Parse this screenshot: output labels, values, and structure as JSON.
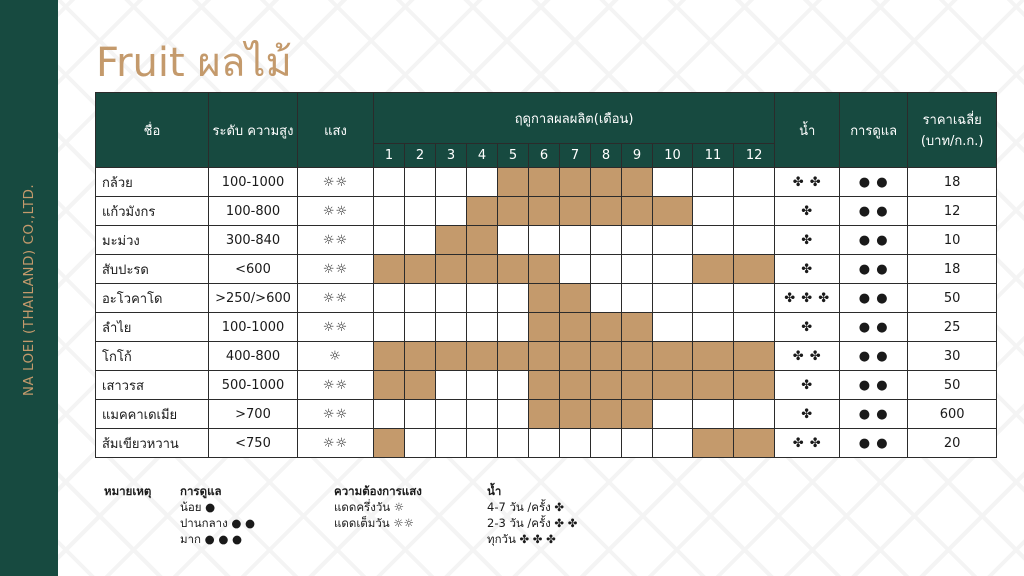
{
  "sidebar": {
    "company": "NA LOEI (THAILAND) CO.,LTD."
  },
  "title": "Fruit ผลไม้",
  "table": {
    "headers": {
      "name": "ชื่อ",
      "height": "ระดับ ความสูง",
      "light": "แสง",
      "season": "ฤดูกาลผลผลิต(เดือน)",
      "water": "น้ำ",
      "care": "การดูแล",
      "price": "ราคาเฉลี่ย (บาท/ก.ก.)"
    },
    "months": [
      "1",
      "2",
      "3",
      "4",
      "5",
      "6",
      "7",
      "8",
      "9",
      "10",
      "11",
      "12"
    ],
    "rows": [
      {
        "name": "กล้วย",
        "height": "100-1000",
        "light": "☼☼",
        "months": [
          5,
          6,
          7,
          8,
          9
        ],
        "water": "✤ ✤",
        "care": "● ●",
        "price": "18"
      },
      {
        "name": "แก้วมังกร",
        "height": "100-800",
        "light": "☼☼",
        "months": [
          4,
          5,
          6,
          7,
          8,
          9,
          10
        ],
        "water": "✤",
        "care": "● ●",
        "price": "12"
      },
      {
        "name": "มะม่วง",
        "height": "300-840",
        "light": "☼☼",
        "months": [
          3,
          4
        ],
        "water": "✤",
        "care": "● ●",
        "price": "10"
      },
      {
        "name": "สับปะรด",
        "height": "<600",
        "light": "☼☼",
        "months": [
          1,
          2,
          3,
          4,
          5,
          6,
          11,
          12
        ],
        "water": "✤",
        "care": "● ●",
        "price": "18"
      },
      {
        "name": "อะโวคาโด",
        "height": ">250/>600",
        "light": "☼☼",
        "months": [
          6,
          7
        ],
        "water": "✤ ✤ ✤",
        "care": "● ●",
        "price": "50"
      },
      {
        "name": "ลำไย",
        "height": "100-1000",
        "light": "☼☼",
        "months": [
          6,
          7,
          8,
          9
        ],
        "water": "✤",
        "care": "● ●",
        "price": "25"
      },
      {
        "name": "โกโก้",
        "height": "400-800",
        "light": "☼",
        "months": [
          1,
          2,
          3,
          4,
          5,
          6,
          7,
          8,
          9,
          10,
          11,
          12
        ],
        "water": "✤ ✤",
        "care": "● ●",
        "price": "30"
      },
      {
        "name": "เสาวรส",
        "height": "500-1000",
        "light": "☼☼",
        "months": [
          1,
          2,
          6,
          7,
          8,
          9,
          10,
          11,
          12
        ],
        "water": "✤",
        "care": "● ●",
        "price": "50"
      },
      {
        "name": "แมคคาเดเมีย",
        "height": ">700",
        "light": "☼☼",
        "months": [
          6,
          7,
          8,
          9
        ],
        "water": "✤",
        "care": "● ●",
        "price": "600"
      },
      {
        "name": "ส้มเขียวหวาน",
        "height": "<750",
        "light": "☼☼",
        "months": [
          1,
          11,
          12
        ],
        "water": "✤ ✤",
        "care": "● ●",
        "price": "20"
      }
    ]
  },
  "legend": {
    "heading": "หมายเหตุ",
    "care": {
      "title": "การดูแล",
      "items": [
        "น้อย  ●",
        "ปานกลาง  ● ●",
        "มาก  ● ● ●"
      ]
    },
    "light": {
      "title": "ความต้องการแสง",
      "items": [
        "แดดครึ่งวัน  ☼",
        "แดดเต็มวัน  ☼☼"
      ]
    },
    "water": {
      "title": "น้ำ",
      "items": [
        "4-7 วัน /ครั้ง  ✤",
        "2-3 วัน /ครั้ง  ✤ ✤",
        "ทุกวัน  ✤ ✤ ✤"
      ]
    }
  }
}
